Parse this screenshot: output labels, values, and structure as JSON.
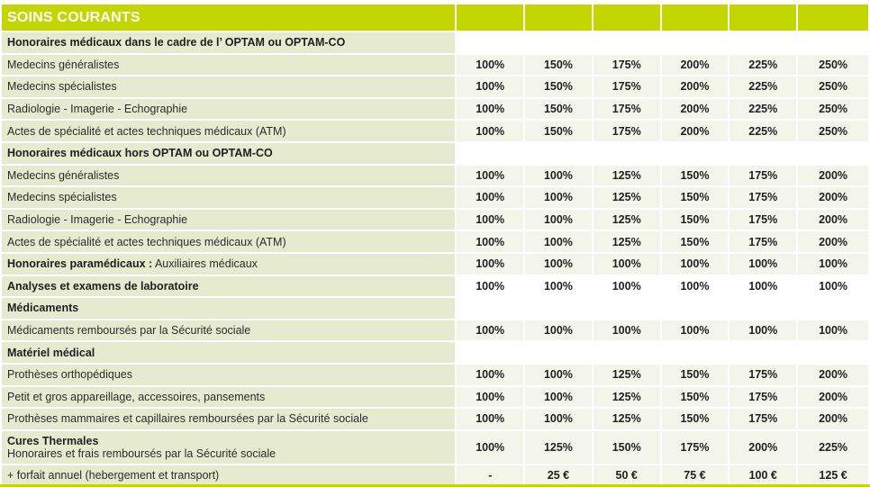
{
  "title": "SOINS COURANTS",
  "colors": {
    "accent": "#c3d600",
    "label_bg": "#e6ebd0",
    "value_bg": "#f3f5ea"
  },
  "rows": [
    {
      "type": "section",
      "label": "Honoraires médicaux dans le cadre de l’ OPTAM ou OPTAM-CO",
      "values": []
    },
    {
      "type": "item",
      "label": "Medecins généralistes",
      "values": [
        "100%",
        "150%",
        "175%",
        "200%",
        "225%",
        "250%"
      ]
    },
    {
      "type": "item",
      "label": "Medecins spécialistes",
      "values": [
        "100%",
        "150%",
        "175%",
        "200%",
        "225%",
        "250%"
      ]
    },
    {
      "type": "item",
      "label": "Radiologie - Imagerie - Echographie",
      "values": [
        "100%",
        "150%",
        "175%",
        "200%",
        "225%",
        "250%"
      ]
    },
    {
      "type": "item",
      "label": "Actes de spécialité et actes techniques médicaux (ATM)",
      "values": [
        "100%",
        "150%",
        "175%",
        "200%",
        "225%",
        "250%"
      ]
    },
    {
      "type": "section",
      "label": "Honoraires médicaux hors OPTAM ou OPTAM-CO",
      "values": []
    },
    {
      "type": "item",
      "label": "Medecins généralistes",
      "values": [
        "100%",
        "100%",
        "125%",
        "150%",
        "175%",
        "200%"
      ]
    },
    {
      "type": "item",
      "label": "Medecins spécialistes",
      "values": [
        "100%",
        "100%",
        "125%",
        "150%",
        "175%",
        "200%"
      ]
    },
    {
      "type": "item",
      "label": "Radiologie - Imagerie - Echographie",
      "values": [
        "100%",
        "100%",
        "125%",
        "150%",
        "175%",
        "200%"
      ]
    },
    {
      "type": "item",
      "label": "Actes de spécialité et actes techniques médicaux (ATM)",
      "values": [
        "100%",
        "100%",
        "125%",
        "150%",
        "175%",
        "200%"
      ]
    },
    {
      "type": "mixed",
      "bold": "Honoraires paramédicaux :",
      "label": " Auxiliaires médicaux",
      "values": [
        "100%",
        "100%",
        "100%",
        "100%",
        "100%",
        "100%"
      ]
    },
    {
      "type": "section-values",
      "label": "Analyses et examens de laboratoire",
      "values": [
        "100%",
        "100%",
        "100%",
        "100%",
        "100%",
        "100%"
      ]
    },
    {
      "type": "section",
      "label": "Médicaments",
      "values": []
    },
    {
      "type": "item",
      "label": "Médicaments remboursés par la Sécurité sociale",
      "values": [
        "100%",
        "100%",
        "100%",
        "100%",
        "100%",
        "100%"
      ]
    },
    {
      "type": "section",
      "label": "Matériel médical",
      "values": []
    },
    {
      "type": "item",
      "label": "Prothèses orthopédiques",
      "values": [
        "100%",
        "100%",
        "125%",
        "150%",
        "175%",
        "200%"
      ]
    },
    {
      "type": "item",
      "label": "Petit et gros appareillage, accessoires, pansements",
      "values": [
        "100%",
        "100%",
        "125%",
        "150%",
        "175%",
        "200%"
      ]
    },
    {
      "type": "item",
      "label": "Prothèses mammaires et capillaires remboursées par la Sécurité sociale",
      "values": [
        "100%",
        "100%",
        "125%",
        "150%",
        "175%",
        "200%"
      ]
    },
    {
      "type": "two-line",
      "bold": "Cures Thermales",
      "label": "Honoraires et frais remboursés par la Sécurité sociale",
      "values": [
        "100%",
        "125%",
        "150%",
        "175%",
        "200%",
        "225%"
      ]
    },
    {
      "type": "item",
      "label": " +  forfait annuel (hebergement et transport)",
      "values": [
        "-",
        "25 €",
        "50 €",
        "75 €",
        "100 €",
        "125 €"
      ]
    }
  ]
}
